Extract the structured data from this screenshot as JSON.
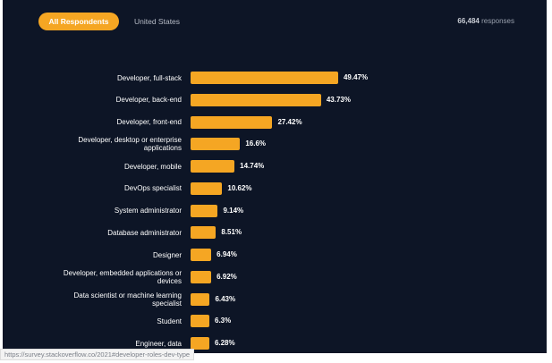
{
  "tabs": [
    "All Respondents",
    "United States"
  ],
  "responses": {
    "count": "66,484",
    "label": "responses"
  },
  "chart_data": {
    "type": "bar",
    "categories": [
      "Developer, full-stack",
      "Developer, back-end",
      "Developer, front-end",
      "Developer, desktop or enterprise applications",
      "Developer, mobile",
      "DevOps specialist",
      "System administrator",
      "Database administrator",
      "Designer",
      "Developer, embedded applications or devices",
      "Data scientist or machine learning specialist",
      "Student",
      "Engineer, data"
    ],
    "values": [
      49.47,
      43.73,
      27.42,
      16.6,
      14.74,
      10.62,
      9.14,
      8.51,
      6.94,
      6.92,
      6.43,
      6.3,
      6.28
    ],
    "value_labels": [
      "49.47%",
      "43.73%",
      "27.42%",
      "16.6%",
      "14.74%",
      "10.62%",
      "9.14%",
      "8.51%",
      "6.94%",
      "6.92%",
      "6.43%",
      "6.3%",
      "6.28%"
    ],
    "color": "#f5a623"
  },
  "status_url": "https://survey.stackoverflow.co/2021#developer-roles-dev-type"
}
